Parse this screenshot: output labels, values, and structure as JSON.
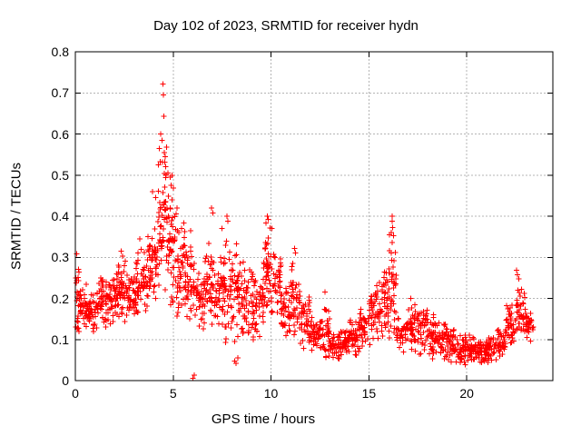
{
  "chart_data": {
    "type": "scatter",
    "title": "Day 102 of 2023, SRMTID for receiver hydn",
    "xlabel": "GPS time / hours",
    "ylabel": "SRMTID / TECUs",
    "xlim": [
      0,
      24.4
    ],
    "ylim": [
      0,
      0.8
    ],
    "xticks": [
      0,
      5,
      10,
      15,
      20
    ],
    "yticks": [
      0,
      0.1,
      0.2,
      0.3,
      0.4,
      0.5,
      0.6,
      0.7,
      0.8
    ],
    "grid": true,
    "grid_style": "dashed",
    "legend": "none",
    "marker": "+",
    "marker_color": "#ff0000",
    "axis_color": "#000000",
    "grid_color": "#b4b4b4",
    "background_color": "#ffffff",
    "series_name": "SRMTID",
    "x_data_range": [
      0,
      23.4
    ],
    "y_data_range": [
      0.005,
      0.72
    ],
    "peak_points": [
      [
        0.08,
        0.308
      ],
      [
        2.35,
        0.315
      ],
      [
        2.42,
        0.303
      ],
      [
        3.3,
        0.345
      ],
      [
        3.95,
        0.46
      ],
      [
        4.1,
        0.445
      ],
      [
        4.3,
        0.565
      ],
      [
        4.35,
        0.6
      ],
      [
        4.42,
        0.585
      ],
      [
        4.45,
        0.532
      ],
      [
        4.47,
        0.721
      ],
      [
        4.5,
        0.695
      ],
      [
        4.53,
        0.643
      ],
      [
        4.55,
        0.555
      ],
      [
        4.6,
        0.545
      ],
      [
        4.62,
        0.52
      ],
      [
        4.72,
        0.505
      ],
      [
        4.85,
        0.495
      ],
      [
        4.9,
        0.475
      ],
      [
        4.95,
        0.5
      ],
      [
        5.0,
        0.468
      ],
      [
        5.15,
        0.405
      ],
      [
        5.2,
        0.42
      ],
      [
        5.9,
        0.365
      ],
      [
        6.0,
        0.005
      ],
      [
        6.08,
        0.013
      ],
      [
        6.95,
        0.42
      ],
      [
        7.02,
        0.408
      ],
      [
        7.5,
        0.37
      ],
      [
        7.75,
        0.4
      ],
      [
        7.8,
        0.388
      ],
      [
        8.15,
        0.048
      ],
      [
        8.22,
        0.042
      ],
      [
        8.3,
        0.055
      ],
      [
        9.75,
        0.383
      ],
      [
        9.8,
        0.4
      ],
      [
        9.85,
        0.392
      ],
      [
        10.05,
        0.37
      ],
      [
        11.2,
        0.322
      ],
      [
        11.25,
        0.31
      ],
      [
        12.75,
        0.215
      ],
      [
        16.15,
        0.36
      ],
      [
        16.18,
        0.4
      ],
      [
        16.2,
        0.388
      ],
      [
        16.22,
        0.372
      ],
      [
        16.25,
        0.352
      ],
      [
        22.55,
        0.268
      ],
      [
        22.6,
        0.258
      ],
      [
        22.65,
        0.248
      ]
    ],
    "envelope_bands": [
      [
        0.0,
        0.2,
        0.08,
        0.31,
        22
      ],
      [
        0.2,
        0.6,
        0.1,
        0.26,
        36
      ],
      [
        0.6,
        1.1,
        0.1,
        0.23,
        42
      ],
      [
        1.1,
        1.6,
        0.11,
        0.27,
        44
      ],
      [
        1.6,
        2.1,
        0.12,
        0.28,
        46
      ],
      [
        2.1,
        2.6,
        0.12,
        0.32,
        50
      ],
      [
        2.6,
        3.1,
        0.13,
        0.28,
        46
      ],
      [
        3.1,
        3.7,
        0.13,
        0.35,
        50
      ],
      [
        3.7,
        4.2,
        0.15,
        0.4,
        50
      ],
      [
        4.2,
        4.7,
        0.18,
        0.6,
        55
      ],
      [
        4.7,
        5.1,
        0.15,
        0.5,
        48
      ],
      [
        5.1,
        5.6,
        0.12,
        0.42,
        48
      ],
      [
        5.6,
        6.1,
        0.1,
        0.36,
        46
      ],
      [
        6.1,
        6.6,
        0.1,
        0.3,
        42
      ],
      [
        6.6,
        7.1,
        0.1,
        0.41,
        46
      ],
      [
        7.1,
        7.6,
        0.08,
        0.33,
        44
      ],
      [
        7.6,
        8.1,
        0.06,
        0.38,
        46
      ],
      [
        8.1,
        8.6,
        0.05,
        0.36,
        44
      ],
      [
        8.6,
        9.1,
        0.08,
        0.3,
        42
      ],
      [
        9.1,
        9.6,
        0.08,
        0.32,
        42
      ],
      [
        9.6,
        10.0,
        0.12,
        0.4,
        44
      ],
      [
        10.0,
        10.5,
        0.1,
        0.34,
        42
      ],
      [
        10.5,
        11.0,
        0.08,
        0.25,
        40
      ],
      [
        11.0,
        11.5,
        0.08,
        0.31,
        42
      ],
      [
        11.5,
        12.0,
        0.06,
        0.22,
        40
      ],
      [
        12.0,
        12.5,
        0.05,
        0.18,
        42
      ],
      [
        12.5,
        13.0,
        0.04,
        0.2,
        42
      ],
      [
        13.0,
        13.5,
        0.04,
        0.13,
        40
      ],
      [
        13.5,
        14.0,
        0.05,
        0.14,
        40
      ],
      [
        14.0,
        14.5,
        0.05,
        0.16,
        40
      ],
      [
        14.5,
        15.0,
        0.06,
        0.2,
        42
      ],
      [
        15.0,
        15.5,
        0.06,
        0.25,
        42
      ],
      [
        15.5,
        16.0,
        0.07,
        0.3,
        44
      ],
      [
        16.0,
        16.4,
        0.08,
        0.38,
        40
      ],
      [
        16.4,
        17.0,
        0.05,
        0.18,
        42
      ],
      [
        17.0,
        17.5,
        0.05,
        0.22,
        42
      ],
      [
        17.5,
        18.0,
        0.05,
        0.2,
        42
      ],
      [
        18.0,
        18.5,
        0.04,
        0.18,
        42
      ],
      [
        18.5,
        19.0,
        0.04,
        0.15,
        40
      ],
      [
        19.0,
        19.5,
        0.03,
        0.14,
        42
      ],
      [
        19.5,
        20.0,
        0.03,
        0.12,
        42
      ],
      [
        20.0,
        20.5,
        0.03,
        0.12,
        42
      ],
      [
        20.5,
        21.0,
        0.03,
        0.11,
        42
      ],
      [
        21.0,
        21.5,
        0.03,
        0.12,
        40
      ],
      [
        21.5,
        22.0,
        0.04,
        0.14,
        40
      ],
      [
        22.0,
        22.5,
        0.06,
        0.2,
        40
      ],
      [
        22.5,
        23.0,
        0.08,
        0.25,
        40
      ],
      [
        23.0,
        23.4,
        0.08,
        0.19,
        30
      ]
    ]
  }
}
